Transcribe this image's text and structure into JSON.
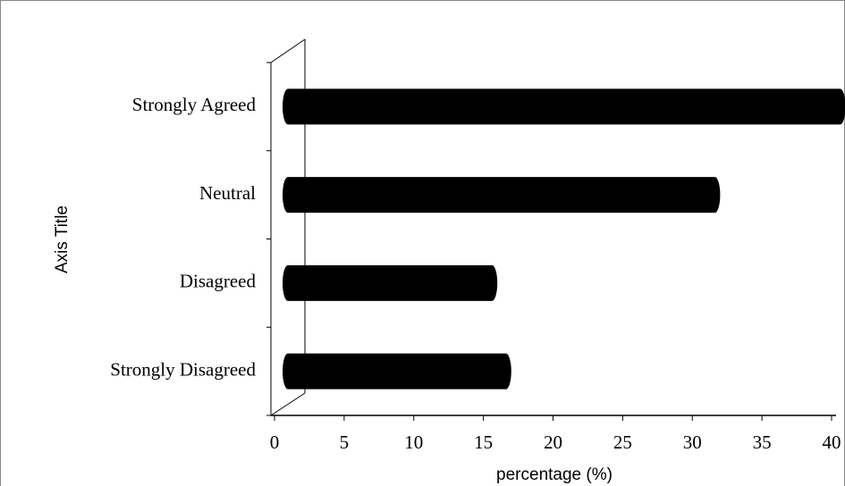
{
  "chart_data": {
    "type": "bar",
    "orientation": "horizontal",
    "x_label": "percentage (%)",
    "y_label": "Axis Title",
    "categories": [
      "Strongly Agreed",
      "Neutral",
      "Disagreed",
      "Strongly Disagreed"
    ],
    "values": [
      41,
      32,
      16,
      17
    ],
    "color": "#000000",
    "xlim": [
      0,
      40
    ],
    "xticks": [
      0,
      5,
      10,
      15,
      20,
      25,
      30,
      35,
      40
    ]
  }
}
